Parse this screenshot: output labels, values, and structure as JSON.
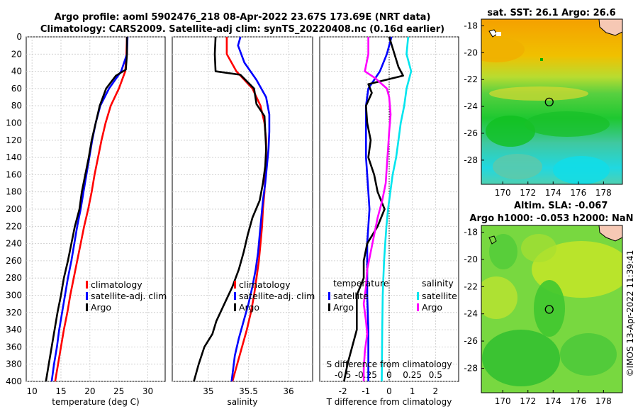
{
  "header": {
    "line1": "Argo profile: aoml 5902476_218 08-Apr-2022 23.67S 173.69E (NRT data)",
    "line2": "Climatology: CARS2009. Satellite-adj clim: synTS_20220408.nc (0.16d earlier)"
  },
  "copyright": "©IMOS 13-Apr-2022 11:39:41",
  "colors": {
    "climatology": "#ff0000",
    "satellite": "#0000ff",
    "argo": "#000000",
    "sal_satellite": "#00e5ee",
    "sal_argo": "#ff00ff"
  },
  "chart_data": [
    {
      "type": "line",
      "name": "temperature-panel",
      "xlabel": "temperature (deg C)",
      "ylabel": "depth (dbar)",
      "xlim": [
        9,
        33
      ],
      "ylim": [
        0,
        400
      ],
      "xticks": [
        10,
        15,
        20,
        25,
        30
      ],
      "yticks": [
        0,
        20,
        40,
        60,
        80,
        100,
        120,
        140,
        160,
        180,
        200,
        220,
        240,
        260,
        280,
        300,
        320,
        340,
        360,
        380,
        400
      ],
      "series": [
        {
          "name": "climatology",
          "color": "#ff0000",
          "points": [
            [
              26.4,
              0
            ],
            [
              26.3,
              20
            ],
            [
              26.1,
              40
            ],
            [
              25,
              60
            ],
            [
              23.6,
              80
            ],
            [
              22.7,
              100
            ],
            [
              22,
              120
            ],
            [
              21.4,
              140
            ],
            [
              20.8,
              160
            ],
            [
              20.3,
              180
            ],
            [
              19.7,
              200
            ],
            [
              19,
              220
            ],
            [
              18.4,
              240
            ],
            [
              17.8,
              260
            ],
            [
              17.2,
              280
            ],
            [
              16.6,
              300
            ],
            [
              16.1,
              320
            ],
            [
              15.5,
              340
            ],
            [
              15,
              360
            ],
            [
              14.5,
              380
            ],
            [
              14,
              400
            ]
          ]
        },
        {
          "name": "satellite-adj. clim",
          "color": "#0000ff",
          "points": [
            [
              26.5,
              0
            ],
            [
              26.4,
              20
            ],
            [
              25.4,
              40
            ],
            [
              23.3,
              60
            ],
            [
              21.8,
              80
            ],
            [
              21,
              100
            ],
            [
              20.4,
              120
            ],
            [
              19.9,
              140
            ],
            [
              19.4,
              160
            ],
            [
              18.9,
              180
            ],
            [
              18.4,
              200
            ],
            [
              17.8,
              220
            ],
            [
              17.3,
              240
            ],
            [
              16.8,
              260
            ],
            [
              16.2,
              280
            ],
            [
              15.7,
              300
            ],
            [
              15.2,
              320
            ],
            [
              14.7,
              340
            ],
            [
              14.3,
              360
            ],
            [
              13.8,
              380
            ],
            [
              13.4,
              400
            ]
          ]
        },
        {
          "name": "Argo",
          "color": "#000000",
          "points": [
            [
              26.4,
              0
            ],
            [
              26.4,
              20
            ],
            [
              26.2,
              38
            ],
            [
              24.5,
              45
            ],
            [
              22.8,
              60
            ],
            [
              21.7,
              80
            ],
            [
              21,
              100
            ],
            [
              20.3,
              120
            ],
            [
              19.8,
              140
            ],
            [
              19.2,
              160
            ],
            [
              18.6,
              180
            ],
            [
              18.2,
              200
            ],
            [
              17.4,
              220
            ],
            [
              16.8,
              240
            ],
            [
              16.2,
              260
            ],
            [
              15.5,
              280
            ],
            [
              15,
              300
            ],
            [
              14.4,
              320
            ],
            [
              13.9,
              340
            ],
            [
              13.4,
              360
            ],
            [
              12.9,
              380
            ],
            [
              12.4,
              400
            ]
          ]
        }
      ],
      "legend": {
        "placement": "bottom-right",
        "entries": [
          "climatology",
          "satellite-adj. clim",
          "Argo"
        ]
      }
    },
    {
      "type": "line",
      "name": "salinity-panel",
      "xlabel": "salinity",
      "xlim": [
        34.55,
        36.3
      ],
      "xticks": [
        35,
        35.5,
        36
      ],
      "series": [
        {
          "name": "climatology",
          "color": "#ff0000",
          "points": [
            [
              35.23,
              0
            ],
            [
              35.23,
              20
            ],
            [
              35.35,
              40
            ],
            [
              35.55,
              60
            ],
            [
              35.65,
              80
            ],
            [
              35.7,
              100
            ],
            [
              35.72,
              120
            ],
            [
              35.72,
              140
            ],
            [
              35.71,
              160
            ],
            [
              35.7,
              180
            ],
            [
              35.68,
              200
            ],
            [
              35.67,
              220
            ],
            [
              35.65,
              240
            ],
            [
              35.63,
              260
            ],
            [
              35.6,
              280
            ],
            [
              35.57,
              300
            ],
            [
              35.53,
              320
            ],
            [
              35.48,
              340
            ],
            [
              35.42,
              360
            ],
            [
              35.36,
              380
            ],
            [
              35.3,
              400
            ]
          ]
        },
        {
          "name": "satellite-adj. clim",
          "color": "#0000ff",
          "points": [
            [
              35.4,
              0
            ],
            [
              35.37,
              10
            ],
            [
              35.45,
              30
            ],
            [
              35.6,
              50
            ],
            [
              35.72,
              70
            ],
            [
              35.76,
              90
            ],
            [
              35.76,
              110
            ],
            [
              35.75,
              130
            ],
            [
              35.73,
              150
            ],
            [
              35.71,
              170
            ],
            [
              35.68,
              190
            ],
            [
              35.66,
              210
            ],
            [
              35.64,
              230
            ],
            [
              35.62,
              250
            ],
            [
              35.59,
              270
            ],
            [
              35.55,
              290
            ],
            [
              35.5,
              310
            ],
            [
              35.44,
              330
            ],
            [
              35.38,
              350
            ],
            [
              35.33,
              370
            ],
            [
              35.29,
              400
            ]
          ]
        },
        {
          "name": "Argo",
          "color": "#000000",
          "points": [
            [
              35.09,
              0
            ],
            [
              35.08,
              20
            ],
            [
              35.09,
              40
            ],
            [
              35.4,
              44
            ],
            [
              35.57,
              60
            ],
            [
              35.6,
              78
            ],
            [
              35.7,
              92
            ],
            [
              35.71,
              110
            ],
            [
              35.72,
              130
            ],
            [
              35.71,
              150
            ],
            [
              35.68,
              170
            ],
            [
              35.64,
              190
            ],
            [
              35.55,
              210
            ],
            [
              35.49,
              230
            ],
            [
              35.44,
              250
            ],
            [
              35.38,
              270
            ],
            [
              35.3,
              290
            ],
            [
              35.2,
              310
            ],
            [
              35.1,
              330
            ],
            [
              35.05,
              345
            ],
            [
              34.95,
              360
            ],
            [
              34.88,
              380
            ],
            [
              34.82,
              400
            ]
          ]
        }
      ],
      "legend": {
        "placement": "bottom-right",
        "entries": [
          "climatology",
          "satellite-adj. clim",
          "Argo"
        ]
      }
    },
    {
      "type": "line",
      "name": "difference-panel",
      "xlabel": "T difference from climatology",
      "xlabel_top": "S difference from climatology",
      "xlim": [
        -3,
        3
      ],
      "xticks": [
        -2,
        -1,
        0,
        1,
        2
      ],
      "xticks_top": [
        -0.5,
        -0.25,
        0,
        0.25,
        0.5
      ],
      "series": [
        {
          "name": "temperature satellite",
          "color": "#0000ff",
          "points": [
            [
              0.1,
              0
            ],
            [
              -0.1,
              20
            ],
            [
              -0.4,
              40
            ],
            [
              -0.9,
              60
            ],
            [
              -1,
              80
            ],
            [
              -1,
              100
            ],
            [
              -1,
              140
            ],
            [
              -0.95,
              160
            ],
            [
              -0.9,
              180
            ],
            [
              -0.85,
              200
            ],
            [
              -0.9,
              220
            ],
            [
              -0.95,
              240
            ],
            [
              -0.95,
              260
            ],
            [
              -0.95,
              300
            ],
            [
              -0.9,
              340
            ],
            [
              -0.9,
              400
            ]
          ]
        },
        {
          "name": "temperature Argo",
          "color": "#000000",
          "points": [
            [
              0,
              0
            ],
            [
              0.4,
              35
            ],
            [
              0.6,
              45
            ],
            [
              -0.9,
              55
            ],
            [
              -0.75,
              65
            ],
            [
              -1,
              80
            ],
            [
              -0.95,
              100
            ],
            [
              -0.8,
              120
            ],
            [
              -0.9,
              140
            ],
            [
              -0.65,
              160
            ],
            [
              -0.5,
              180
            ],
            [
              -0.2,
              200
            ],
            [
              -0.5,
              220
            ],
            [
              -0.95,
              240
            ],
            [
              -1.1,
              260
            ],
            [
              -1.1,
              280
            ],
            [
              -1.4,
              300
            ],
            [
              -1.4,
              340
            ],
            [
              -1.8,
              380
            ],
            [
              -1.95,
              400
            ]
          ]
        },
        {
          "name": "salinity satellite",
          "color": "#00e5ee",
          "points": [
            [
              0.82,
              0
            ],
            [
              0.75,
              20
            ],
            [
              0.95,
              40
            ],
            [
              0.75,
              60
            ],
            [
              0.65,
              80
            ],
            [
              0.5,
              100
            ],
            [
              0.4,
              120
            ],
            [
              0.3,
              140
            ],
            [
              0.15,
              160
            ],
            [
              0.05,
              180
            ],
            [
              -0.05,
              200
            ],
            [
              -0.12,
              220
            ],
            [
              -0.17,
              240
            ],
            [
              -0.22,
              260
            ],
            [
              -0.25,
              280
            ],
            [
              -0.28,
              300
            ],
            [
              -0.3,
              340
            ],
            [
              -0.32,
              400
            ]
          ]
        },
        {
          "name": "salinity Argo",
          "color": "#ff00ff",
          "points": [
            [
              -0.9,
              0
            ],
            [
              -0.9,
              20
            ],
            [
              -1.05,
              40
            ],
            [
              -0.6,
              48
            ],
            [
              -0.1,
              60
            ],
            [
              0,
              70
            ],
            [
              0.06,
              90
            ],
            [
              0,
              110
            ],
            [
              -0.05,
              130
            ],
            [
              -0.1,
              150
            ],
            [
              -0.15,
              170
            ],
            [
              -0.3,
              190
            ],
            [
              -0.5,
              210
            ],
            [
              -0.65,
              230
            ],
            [
              -0.8,
              250
            ],
            [
              -0.95,
              270
            ],
            [
              -1,
              290
            ],
            [
              -1.1,
              310
            ],
            [
              -1,
              330
            ],
            [
              -0.95,
              345
            ],
            [
              -1.05,
              365
            ],
            [
              -1.1,
              385
            ],
            [
              -1.1,
              400
            ]
          ]
        }
      ],
      "legend_left": {
        "title": "temperature",
        "entries": [
          "satellite",
          "Argo"
        ]
      },
      "legend_right": {
        "title": "salinity",
        "entries": [
          "satellite",
          "Argo"
        ]
      }
    },
    {
      "type": "heatmap",
      "name": "sst-map",
      "title": "sat. SST: 26.1 Argo: 26.6",
      "xlim": [
        168.3,
        179.5
      ],
      "ylim": [
        -29.8,
        -17.5
      ],
      "xticks": [
        170,
        172,
        174,
        176,
        178
      ],
      "yticks": [
        -18,
        -20,
        -22,
        -24,
        -26,
        -28
      ],
      "marker": {
        "lon": 173.69,
        "lat": -23.67
      }
    },
    {
      "type": "heatmap",
      "name": "sla-map",
      "title_line1": "Altim. SLA: -0.067",
      "title_line2": "Argo h1000: -0.053 h2000: NaN",
      "xlim": [
        168.3,
        179.5
      ],
      "ylim": [
        -29.8,
        -17.5
      ],
      "xticks": [
        170,
        172,
        174,
        176,
        178
      ],
      "yticks": [
        -18,
        -20,
        -22,
        -24,
        -26,
        -28
      ],
      "marker": {
        "lon": 173.69,
        "lat": -23.67
      }
    }
  ]
}
